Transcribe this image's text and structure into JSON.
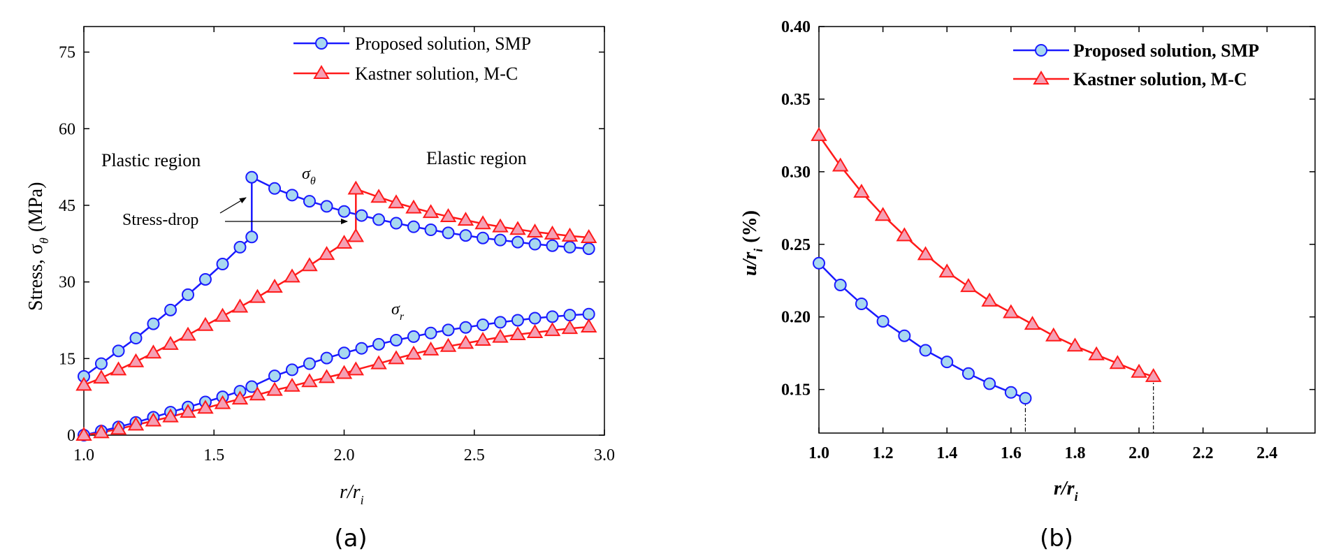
{
  "colors": {
    "blue": "#1a1aff",
    "red": "#ff1a1a",
    "marker_blue": "#a8d8f0",
    "marker_red": "#f5a0b4",
    "axis": "#000000",
    "annotation": "#000000"
  },
  "captions": {
    "a": "(a)",
    "b": "(b)"
  },
  "chart_data": [
    {
      "id": "a",
      "type": "line",
      "title": "",
      "xlabel": "r/r",
      "xlabel_sub": "i",
      "ylabel": "Stress, σ",
      "ylabel_sub": "θ",
      "ylabel_unit": "(MPa)",
      "xlim": [
        1.0,
        3.0
      ],
      "ylim": [
        0,
        80
      ],
      "xticks": [
        "1.0",
        "1.5",
        "2.0",
        "2.5",
        "3.0"
      ],
      "yticks": [
        "0",
        "15",
        "30",
        "45",
        "60",
        "75"
      ],
      "legend_position": "top-right",
      "legend": [
        "Proposed solution, SMP",
        "Kastner  solution, M-C"
      ],
      "annotations": {
        "plastic": "Plastic region",
        "elastic": "Elastic region",
        "stress_drop": "Stress-drop",
        "sigma_theta": "σ",
        "sigma_theta_sub": "θ",
        "sigma_r": "σ",
        "sigma_r_sub": "r"
      },
      "series": [
        {
          "name": "Proposed solution, SMP (σθ)",
          "color": "blue",
          "marker": "circle",
          "x": [
            1.0,
            1.067,
            1.133,
            1.2,
            1.267,
            1.333,
            1.4,
            1.467,
            1.533,
            1.6,
            1.645,
            1.645,
            1.733,
            1.8,
            1.867,
            1.933,
            2.0,
            2.067,
            2.133,
            2.2,
            2.267,
            2.333,
            2.4,
            2.467,
            2.533,
            2.6,
            2.667,
            2.733,
            2.8,
            2.867,
            2.94
          ],
          "y": [
            11.5,
            14.0,
            16.5,
            19.0,
            21.8,
            24.5,
            27.5,
            30.5,
            33.5,
            36.8,
            38.8,
            50.5,
            48.3,
            47.0,
            45.8,
            44.8,
            43.8,
            43.0,
            42.2,
            41.5,
            40.8,
            40.2,
            39.6,
            39.1,
            38.6,
            38.2,
            37.8,
            37.4,
            37.1,
            36.8,
            36.5
          ],
          "markers": [
            0,
            1,
            2,
            3,
            4,
            5,
            6,
            7,
            8,
            9,
            10,
            11,
            12,
            13,
            14,
            15,
            16,
            17,
            18,
            19,
            20,
            21,
            22,
            23,
            24,
            25,
            26,
            27,
            28,
            29,
            30
          ]
        },
        {
          "name": "Kastner solution, M-C (σθ)",
          "color": "red",
          "marker": "triangle",
          "x": [
            1.0,
            1.067,
            1.133,
            1.2,
            1.267,
            1.333,
            1.4,
            1.467,
            1.533,
            1.6,
            1.667,
            1.733,
            1.8,
            1.867,
            1.933,
            2.0,
            2.045,
            2.045,
            2.133,
            2.2,
            2.267,
            2.333,
            2.4,
            2.467,
            2.533,
            2.6,
            2.667,
            2.733,
            2.8,
            2.867,
            2.94
          ],
          "y": [
            9.8,
            11.2,
            12.8,
            14.4,
            16.1,
            17.8,
            19.6,
            21.5,
            23.3,
            25.1,
            27.0,
            29.0,
            31.0,
            33.2,
            35.4,
            37.6,
            38.9,
            48.2,
            46.6,
            45.5,
            44.5,
            43.6,
            42.8,
            42.1,
            41.4,
            40.8,
            40.3,
            39.8,
            39.4,
            39.0,
            38.7
          ],
          "markers": [
            0,
            1,
            2,
            3,
            4,
            5,
            6,
            7,
            8,
            9,
            10,
            11,
            12,
            13,
            14,
            15,
            16,
            17,
            18,
            19,
            20,
            21,
            22,
            23,
            24,
            25,
            26,
            27,
            28,
            29,
            30
          ]
        },
        {
          "name": "Proposed solution, SMP (σr)",
          "color": "blue",
          "marker": "circle",
          "x": [
            1.0,
            1.067,
            1.133,
            1.2,
            1.267,
            1.333,
            1.4,
            1.467,
            1.533,
            1.6,
            1.645,
            1.733,
            1.8,
            1.867,
            1.933,
            2.0,
            2.067,
            2.133,
            2.2,
            2.267,
            2.333,
            2.4,
            2.467,
            2.533,
            2.6,
            2.667,
            2.733,
            2.8,
            2.867,
            2.94
          ],
          "y": [
            0.0,
            0.8,
            1.6,
            2.5,
            3.5,
            4.5,
            5.5,
            6.5,
            7.5,
            8.6,
            9.5,
            11.6,
            12.8,
            14.0,
            15.1,
            16.1,
            17.0,
            17.8,
            18.6,
            19.3,
            20.0,
            20.6,
            21.1,
            21.6,
            22.1,
            22.5,
            22.9,
            23.2,
            23.5,
            23.7
          ],
          "markers": [
            0,
            1,
            2,
            3,
            4,
            5,
            6,
            7,
            8,
            9,
            10,
            11,
            12,
            13,
            14,
            15,
            16,
            17,
            18,
            19,
            20,
            21,
            22,
            23,
            24,
            25,
            26,
            27,
            28,
            29
          ]
        },
        {
          "name": "Kastner solution, M-C (σr)",
          "color": "red",
          "marker": "triangle",
          "x": [
            1.0,
            1.067,
            1.133,
            1.2,
            1.267,
            1.333,
            1.4,
            1.467,
            1.533,
            1.6,
            1.667,
            1.733,
            1.8,
            1.867,
            1.933,
            2.0,
            2.045,
            2.133,
            2.2,
            2.267,
            2.333,
            2.4,
            2.467,
            2.533,
            2.6,
            2.667,
            2.733,
            2.8,
            2.867,
            2.94
          ],
          "y": [
            0.0,
            0.5,
            1.2,
            2.0,
            2.8,
            3.6,
            4.5,
            5.3,
            6.2,
            7.1,
            7.9,
            8.8,
            9.6,
            10.5,
            11.3,
            12.1,
            12.8,
            14.0,
            15.0,
            15.9,
            16.7,
            17.4,
            18.0,
            18.6,
            19.2,
            19.7,
            20.1,
            20.5,
            20.9,
            21.2
          ],
          "markers": [
            0,
            1,
            2,
            3,
            4,
            5,
            6,
            7,
            8,
            9,
            10,
            11,
            12,
            13,
            14,
            15,
            16,
            17,
            18,
            19,
            20,
            21,
            22,
            23,
            24,
            25,
            26,
            27,
            28,
            29
          ]
        }
      ]
    },
    {
      "id": "b",
      "type": "line",
      "title": "",
      "xlabel": "r/r",
      "xlabel_sub": "i",
      "ylabel": "u/r",
      "ylabel_sub": "i",
      "ylabel_unit": "(%)",
      "xlim": [
        1.0,
        2.55
      ],
      "ylim": [
        0.12,
        0.4
      ],
      "xticks": [
        "1.0",
        "1.2",
        "1.4",
        "1.6",
        "1.8",
        "2.0",
        "2.2",
        "2.4"
      ],
      "yticks": [
        "0.15",
        "0.20",
        "0.25",
        "0.30",
        "0.35",
        "0.40"
      ],
      "legend_position": "top-right",
      "legend": [
        "Proposed solution, SMP",
        "Kastner solution, M-C"
      ],
      "series": [
        {
          "name": "Proposed solution, SMP",
          "color": "blue",
          "marker": "circle",
          "x": [
            1.0,
            1.067,
            1.133,
            1.2,
            1.267,
            1.333,
            1.4,
            1.467,
            1.533,
            1.6,
            1.645
          ],
          "y": [
            0.237,
            0.222,
            0.209,
            0.197,
            0.187,
            0.177,
            0.169,
            0.161,
            0.154,
            0.148,
            0.144
          ]
        },
        {
          "name": "Kastner solution, M-C",
          "color": "red",
          "marker": "triangle",
          "x": [
            1.0,
            1.067,
            1.133,
            1.2,
            1.267,
            1.333,
            1.4,
            1.467,
            1.533,
            1.6,
            1.667,
            1.733,
            1.8,
            1.867,
            1.933,
            2.0,
            2.045
          ],
          "y": [
            0.325,
            0.304,
            0.286,
            0.27,
            0.256,
            0.243,
            0.231,
            0.221,
            0.211,
            0.203,
            0.195,
            0.187,
            0.18,
            0.174,
            0.168,
            0.162,
            0.159
          ]
        }
      ],
      "dropline_x": [
        1.645,
        2.045
      ]
    }
  ]
}
